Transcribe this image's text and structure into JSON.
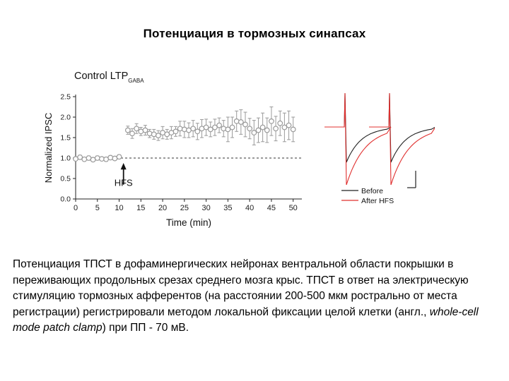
{
  "slide": {
    "title": "Потенциация в тормозных синапсах"
  },
  "caption": {
    "part1": "Потенциация ТПСТ в дофаминергических нейронах вентральной области покрышки в переживающих продольных срезах среднего мозга крыс. ТПСТ в ответ на электрическую стимуляцию тормозных афферентов (на расстоянии 200-500 мкм рострально от места регистрации) регистрировали методом локальной фиксации целой клетки (англ., ",
    "italic": "whole-cell mode patch clamp",
    "part2": ") при ПП - 70 мВ."
  },
  "colors": {
    "points": "#9a9a9a",
    "baseline": "#333333",
    "trace_before": "#222222",
    "trace_after": "#e0302f"
  },
  "chart_data": [
    {
      "type": "scatter",
      "title": "Control LTP",
      "title_subscript": "GABA",
      "xlabel": "Time (min)",
      "ylabel": "Normalized IPSC",
      "xlim": [
        0,
        52
      ],
      "ylim": [
        0,
        2.5
      ],
      "xticks": [
        0,
        5,
        10,
        15,
        20,
        25,
        30,
        35,
        40,
        45,
        50
      ],
      "yticks": [
        0.0,
        0.5,
        1.0,
        1.5,
        2.0,
        2.5
      ],
      "baseline": 1.0,
      "annotation": {
        "text": "HFS",
        "x": 11
      },
      "points": [
        {
          "x": 0,
          "y": 0.98,
          "err": 0.04
        },
        {
          "x": 1,
          "y": 1.02,
          "err": 0.05
        },
        {
          "x": 2,
          "y": 0.97,
          "err": 0.04
        },
        {
          "x": 3,
          "y": 1.0,
          "err": 0.05
        },
        {
          "x": 4,
          "y": 0.96,
          "err": 0.04
        },
        {
          "x": 5,
          "y": 1.0,
          "err": 0.05
        },
        {
          "x": 6,
          "y": 0.98,
          "err": 0.04
        },
        {
          "x": 7,
          "y": 0.97,
          "err": 0.05
        },
        {
          "x": 8,
          "y": 1.01,
          "err": 0.05
        },
        {
          "x": 9,
          "y": 0.99,
          "err": 0.04
        },
        {
          "x": 10,
          "y": 1.03,
          "err": 0.05
        },
        {
          "x": 12,
          "y": 1.68,
          "err": 0.1
        },
        {
          "x": 13,
          "y": 1.6,
          "err": 0.12
        },
        {
          "x": 14,
          "y": 1.72,
          "err": 0.12
        },
        {
          "x": 15,
          "y": 1.65,
          "err": 0.1
        },
        {
          "x": 16,
          "y": 1.68,
          "err": 0.12
        },
        {
          "x": 17,
          "y": 1.6,
          "err": 0.1
        },
        {
          "x": 18,
          "y": 1.58,
          "err": 0.12
        },
        {
          "x": 19,
          "y": 1.55,
          "err": 0.12
        },
        {
          "x": 20,
          "y": 1.62,
          "err": 0.15
        },
        {
          "x": 21,
          "y": 1.58,
          "err": 0.12
        },
        {
          "x": 22,
          "y": 1.62,
          "err": 0.15
        },
        {
          "x": 23,
          "y": 1.65,
          "err": 0.12
        },
        {
          "x": 24,
          "y": 1.72,
          "err": 0.18
        },
        {
          "x": 25,
          "y": 1.7,
          "err": 0.2
        },
        {
          "x": 26,
          "y": 1.68,
          "err": 0.18
        },
        {
          "x": 27,
          "y": 1.72,
          "err": 0.2
        },
        {
          "x": 28,
          "y": 1.65,
          "err": 0.2
        },
        {
          "x": 29,
          "y": 1.72,
          "err": 0.22
        },
        {
          "x": 30,
          "y": 1.75,
          "err": 0.2
        },
        {
          "x": 31,
          "y": 1.7,
          "err": 0.18
        },
        {
          "x": 32,
          "y": 1.75,
          "err": 0.2
        },
        {
          "x": 33,
          "y": 1.8,
          "err": 0.18
        },
        {
          "x": 34,
          "y": 1.72,
          "err": 0.2
        },
        {
          "x": 35,
          "y": 1.7,
          "err": 0.3
        },
        {
          "x": 36,
          "y": 1.75,
          "err": 0.25
        },
        {
          "x": 37,
          "y": 1.9,
          "err": 0.25
        },
        {
          "x": 38,
          "y": 1.88,
          "err": 0.3
        },
        {
          "x": 39,
          "y": 1.82,
          "err": 0.3
        },
        {
          "x": 40,
          "y": 1.72,
          "err": 0.25
        },
        {
          "x": 41,
          "y": 1.62,
          "err": 0.3
        },
        {
          "x": 42,
          "y": 1.68,
          "err": 0.3
        },
        {
          "x": 43,
          "y": 1.75,
          "err": 0.35
        },
        {
          "x": 44,
          "y": 1.68,
          "err": 0.3
        },
        {
          "x": 45,
          "y": 1.9,
          "err": 0.35
        },
        {
          "x": 46,
          "y": 1.72,
          "err": 0.3
        },
        {
          "x": 47,
          "y": 1.85,
          "err": 0.3
        },
        {
          "x": 48,
          "y": 1.75,
          "err": 0.35
        },
        {
          "x": 49,
          "y": 1.8,
          "err": 0.35
        },
        {
          "x": 50,
          "y": 1.7,
          "err": 0.3
        }
      ]
    },
    {
      "type": "line",
      "legend": [
        "Before",
        "After HFS"
      ],
      "series": [
        {
          "name": "Before",
          "color": "#222222"
        },
        {
          "name": "After HFS",
          "color": "#e0302f"
        }
      ]
    }
  ]
}
